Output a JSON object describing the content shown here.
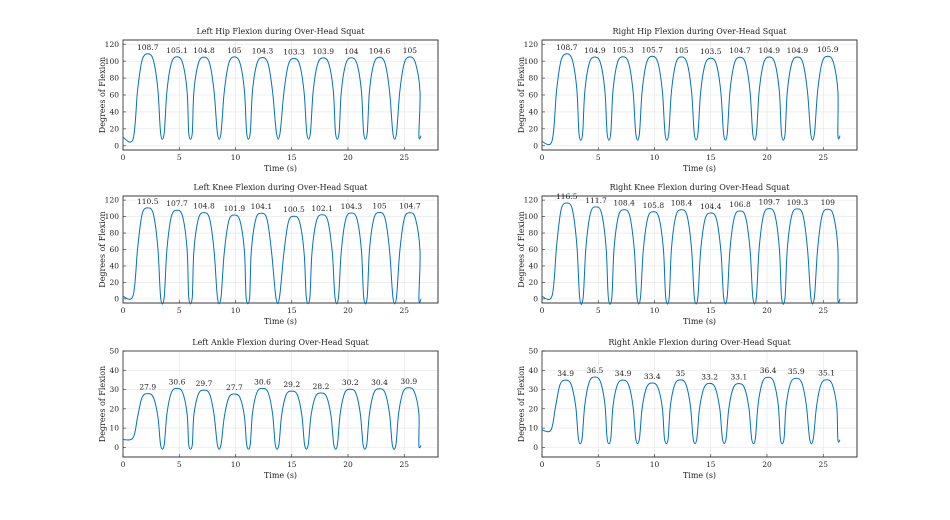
{
  "chart_data": [
    {
      "type": "line",
      "title": "Left Hip Flexion during Over-Head Squat",
      "xlabel": "Time (s)",
      "ylabel": "Degrees of Flexion",
      "xlim": [
        0,
        28
      ],
      "ylim": [
        -5,
        125
      ],
      "xticks": [
        0,
        5,
        10,
        15,
        20,
        25
      ],
      "yticks": [
        0,
        20,
        40,
        60,
        80,
        100,
        120
      ],
      "grid": true,
      "baseline": 8,
      "floor": 14,
      "start_value": 10,
      "end_value": 12,
      "end_x": 26.5,
      "peaks": [
        {
          "x": 2.2,
          "y": 108.7,
          "label": "108.7"
        },
        {
          "x": 4.8,
          "y": 105.1,
          "label": "105.1"
        },
        {
          "x": 7.2,
          "y": 104.8,
          "label": "104.8"
        },
        {
          "x": 9.9,
          "y": 105,
          "label": "105"
        },
        {
          "x": 12.4,
          "y": 104.3,
          "label": "104.3"
        },
        {
          "x": 15.2,
          "y": 103.3,
          "label": "103.3"
        },
        {
          "x": 17.8,
          "y": 103.9,
          "label": "103.9"
        },
        {
          "x": 20.3,
          "y": 104,
          "label": "104"
        },
        {
          "x": 22.8,
          "y": 104.6,
          "label": "104.6"
        },
        {
          "x": 25.5,
          "y": 105,
          "label": "105"
        }
      ]
    },
    {
      "type": "line",
      "title": "Right Hip Flexion during Over-Head Squat",
      "xlabel": "Time (s)",
      "ylabel": "Degrees of Flexion",
      "xlim": [
        0,
        28
      ],
      "ylim": [
        -5,
        125
      ],
      "xticks": [
        0,
        5,
        10,
        15,
        20,
        25
      ],
      "yticks": [
        0,
        20,
        40,
        60,
        80,
        100,
        120
      ],
      "grid": true,
      "baseline": 6,
      "floor": 13,
      "start_value": 5,
      "end_value": 12,
      "end_x": 26.5,
      "peaks": [
        {
          "x": 2.2,
          "y": 108.7,
          "label": "108.7"
        },
        {
          "x": 4.7,
          "y": 104.9,
          "label": "104.9"
        },
        {
          "x": 7.2,
          "y": 105.3,
          "label": "105.3"
        },
        {
          "x": 9.8,
          "y": 105.7,
          "label": "105.7"
        },
        {
          "x": 12.4,
          "y": 105,
          "label": "105"
        },
        {
          "x": 15.0,
          "y": 103.5,
          "label": "103.5"
        },
        {
          "x": 17.6,
          "y": 104.7,
          "label": "104.7"
        },
        {
          "x": 20.2,
          "y": 104.9,
          "label": "104.9"
        },
        {
          "x": 22.7,
          "y": 104.9,
          "label": "104.9"
        },
        {
          "x": 25.4,
          "y": 105.9,
          "label": "105.9"
        }
      ]
    },
    {
      "type": "line",
      "title": "Left Knee Flexion during Over-Head Squat",
      "xlabel": "Time (s)",
      "ylabel": "Degrees of Flexion",
      "xlim": [
        0,
        28
      ],
      "ylim": [
        -5,
        125
      ],
      "xticks": [
        0,
        5,
        10,
        15,
        20,
        25
      ],
      "yticks": [
        0,
        20,
        40,
        60,
        80,
        100,
        120
      ],
      "grid": true,
      "baseline": 4,
      "floor": 1,
      "start_value": 3,
      "end_value": 0,
      "end_x": 26.5,
      "peaks": [
        {
          "x": 2.2,
          "y": 110.5,
          "label": "110.5"
        },
        {
          "x": 4.8,
          "y": 107.7,
          "label": "107.7"
        },
        {
          "x": 7.2,
          "y": 104.8,
          "label": "104.8"
        },
        {
          "x": 9.9,
          "y": 101.9,
          "label": "101.9"
        },
        {
          "x": 12.3,
          "y": 104.1,
          "label": "104.1"
        },
        {
          "x": 15.2,
          "y": 100.5,
          "label": "100.5"
        },
        {
          "x": 17.7,
          "y": 102.1,
          "label": "102.1"
        },
        {
          "x": 20.3,
          "y": 104.3,
          "label": "104.3"
        },
        {
          "x": 22.8,
          "y": 105,
          "label": "105"
        },
        {
          "x": 25.5,
          "y": 104.7,
          "label": "104.7"
        }
      ]
    },
    {
      "type": "line",
      "title": "Right Knee Flexion during Over-Head Squat",
      "xlabel": "Time (s)",
      "ylabel": "Degrees of Flexion",
      "xlim": [
        0,
        28
      ],
      "ylim": [
        -5,
        125
      ],
      "xticks": [
        0,
        5,
        10,
        15,
        20,
        25
      ],
      "yticks": [
        0,
        20,
        40,
        60,
        80,
        100,
        120
      ],
      "grid": true,
      "baseline": 4,
      "floor": 1,
      "start_value": 3,
      "end_value": 0,
      "end_x": 26.5,
      "peaks": [
        {
          "x": 2.2,
          "y": 116.5,
          "label": "116.5"
        },
        {
          "x": 4.8,
          "y": 111.7,
          "label": "111.7"
        },
        {
          "x": 7.3,
          "y": 108.4,
          "label": "108.4"
        },
        {
          "x": 9.9,
          "y": 105.8,
          "label": "105.8"
        },
        {
          "x": 12.4,
          "y": 108.4,
          "label": "108.4"
        },
        {
          "x": 15.0,
          "y": 104.4,
          "label": "104.4"
        },
        {
          "x": 17.6,
          "y": 106.8,
          "label": "106.8"
        },
        {
          "x": 20.2,
          "y": 109.7,
          "label": "109.7"
        },
        {
          "x": 22.7,
          "y": 109.3,
          "label": "109.3"
        },
        {
          "x": 25.4,
          "y": 109,
          "label": "109"
        }
      ]
    },
    {
      "type": "line",
      "title": "Left Ankle Flexion during Over-Head Squat",
      "xlabel": "Time (s)",
      "ylabel": "Degrees of Flexion",
      "xlim": [
        0,
        28
      ],
      "ylim": [
        -5,
        50
      ],
      "xticks": [
        0,
        5,
        10,
        15,
        20,
        25
      ],
      "yticks": [
        0,
        10,
        20,
        30,
        40,
        50
      ],
      "grid": true,
      "baseline": 5,
      "floor": 1,
      "start_value": 4,
      "end_value": 1,
      "end_x": 26.5,
      "peaks": [
        {
          "x": 2.2,
          "y": 27.9,
          "label": "27.9"
        },
        {
          "x": 4.8,
          "y": 30.6,
          "label": "30.6"
        },
        {
          "x": 7.2,
          "y": 29.7,
          "label": "29.7"
        },
        {
          "x": 9.9,
          "y": 27.7,
          "label": "27.7"
        },
        {
          "x": 12.4,
          "y": 30.6,
          "label": "30.6"
        },
        {
          "x": 15.0,
          "y": 29.2,
          "label": "29.2"
        },
        {
          "x": 17.6,
          "y": 28.2,
          "label": "28.2"
        },
        {
          "x": 20.2,
          "y": 30.2,
          "label": "30.2"
        },
        {
          "x": 22.8,
          "y": 30.4,
          "label": "30.4"
        },
        {
          "x": 25.4,
          "y": 30.9,
          "label": "30.9"
        }
      ]
    },
    {
      "type": "line",
      "title": "Right Ankle Flexion during Over-Head Squat",
      "xlabel": "Time (s)",
      "ylabel": "Degrees of Flexion",
      "xlim": [
        0,
        28
      ],
      "ylim": [
        -5,
        50
      ],
      "xticks": [
        0,
        5,
        10,
        15,
        20,
        25
      ],
      "yticks": [
        0,
        10,
        20,
        30,
        40,
        50
      ],
      "grid": true,
      "baseline": 9,
      "floor": 4,
      "start_value": 9,
      "end_value": 4,
      "end_x": 26.5,
      "peaks": [
        {
          "x": 2.1,
          "y": 34.9,
          "label": "34.9"
        },
        {
          "x": 4.7,
          "y": 36.5,
          "label": "36.5"
        },
        {
          "x": 7.2,
          "y": 34.9,
          "label": "34.9"
        },
        {
          "x": 9.8,
          "y": 33.4,
          "label": "33.4"
        },
        {
          "x": 12.3,
          "y": 35,
          "label": "35"
        },
        {
          "x": 14.9,
          "y": 33.2,
          "label": "33.2"
        },
        {
          "x": 17.5,
          "y": 33.1,
          "label": "33.1"
        },
        {
          "x": 20.1,
          "y": 36.4,
          "label": "36.4"
        },
        {
          "x": 22.6,
          "y": 35.9,
          "label": "35.9"
        },
        {
          "x": 25.3,
          "y": 35.1,
          "label": "35.1"
        }
      ]
    }
  ]
}
